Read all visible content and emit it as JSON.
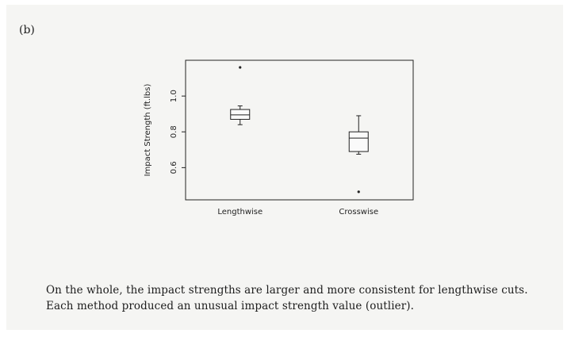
{
  "figure": {
    "part_label": "(b)"
  },
  "chart_data": {
    "type": "boxplot",
    "ylabel": "Impact Strength (ft.lbs)",
    "xlabel": "",
    "title": "",
    "ylim": [
      0.42,
      1.2
    ],
    "yticks": [
      0.6,
      0.8,
      1.0
    ],
    "ytick_labels": [
      "0.6",
      "0.8",
      "1.0"
    ],
    "categories": [
      "Lengthwise",
      "Crosswise"
    ],
    "boxes": [
      {
        "category": "Lengthwise",
        "whisker_low": 0.84,
        "q1": 0.87,
        "median": 0.895,
        "q3": 0.925,
        "whisker_high": 0.945,
        "outliers": [
          1.16
        ]
      },
      {
        "category": "Crosswise",
        "whisker_low": 0.675,
        "q1": 0.69,
        "median": 0.765,
        "q3": 0.8,
        "whisker_high": 0.89,
        "outliers": [
          0.465
        ]
      }
    ],
    "grid": false
  },
  "caption": {
    "line1": "On the whole, the impact strengths are larger and more consistent for lengthwise cuts.",
    "line2": "Each method produced an unusual impact strength value (outlier)."
  }
}
